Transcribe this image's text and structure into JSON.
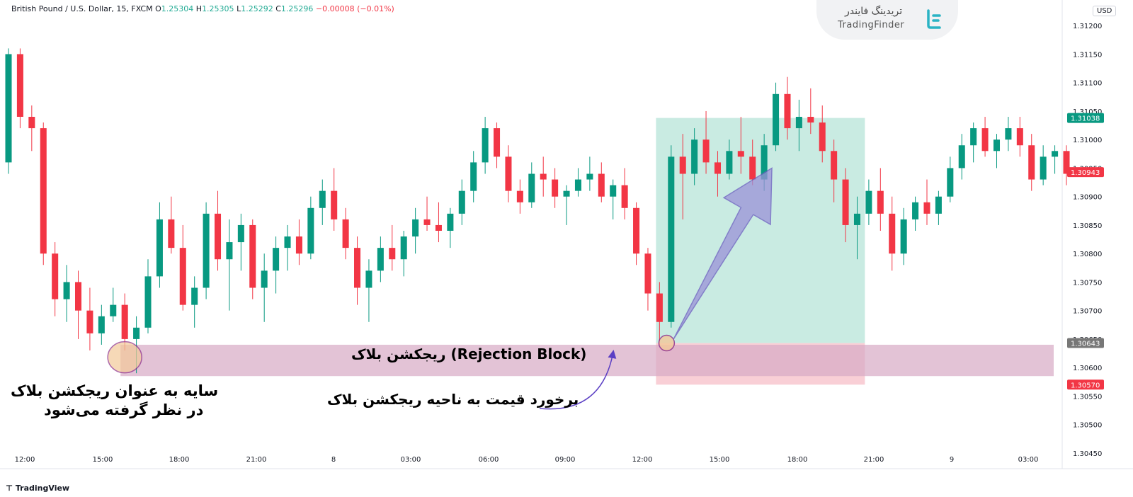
{
  "header": {
    "symbol": "British Pound / U.S. Dollar, 15, FXCM",
    "o_label": "O",
    "o_value": "1.25304",
    "h_label": "H",
    "h_value": "1.25305",
    "l_label": "L",
    "l_value": "1.25292",
    "c_label": "C",
    "c_value": "1.25296",
    "change": "−0.00008 (−0.01%)"
  },
  "logo": {
    "persian": "تریدینگ فایندر",
    "english": "TradingFinder"
  },
  "currency": "USD",
  "footer_brand": "TradingView",
  "annotations": {
    "zone_label": "ریجکشن بلاک (Rejection Block)",
    "touch_label": "برخورد قیمت به ناحیه ریجکشن بلاک",
    "shadow_line1": "سایه به عنوان ریجکشن بلاک",
    "shadow_line2": "در نظر گرفته می‌شود"
  },
  "colors": {
    "bull": "#089981",
    "bear": "#f23645",
    "zone": "#d7a9c4",
    "target": "#b2e3d5",
    "stop": "#f8c3cc",
    "arrow": "#9b92d8"
  },
  "chart_data": {
    "type": "candlestick",
    "ylim": [
      1.30425,
      1.31245
    ],
    "y_ticks": [
      "1.31200",
      "1.31150",
      "1.31100",
      "1.31050",
      "1.31000",
      "1.30950",
      "1.30900",
      "1.30850",
      "1.30800",
      "1.30750",
      "1.30700",
      "1.30650",
      "1.30600",
      "1.30550",
      "1.30500",
      "1.30450"
    ],
    "x_ticks": [
      "12:00",
      "15:00",
      "18:00",
      "21:00",
      "8",
      "03:00",
      "06:00",
      "09:00",
      "12:00",
      "15:00",
      "18:00",
      "21:00",
      "9",
      "03:00"
    ],
    "price_labels": [
      {
        "value": "1.31038",
        "color": "#089981"
      },
      {
        "value": "1.30943",
        "color": "#f23645"
      },
      {
        "value": "1.30643",
        "color": "#777777"
      },
      {
        "value": "1.30570",
        "color": "#f23645"
      }
    ],
    "rejection_zone": [
      1.30585,
      1.3064
    ],
    "position": {
      "entry": 1.30643,
      "target": 1.31038,
      "stop": 1.3057
    },
    "candles": [
      [
        1.3096,
        1.3116,
        1.3094,
        1.3115
      ],
      [
        1.3115,
        1.3116,
        1.3102,
        1.3104
      ],
      [
        1.3104,
        1.3106,
        1.3098,
        1.3102
      ],
      [
        1.3102,
        1.3103,
        1.3078,
        1.308
      ],
      [
        1.308,
        1.3082,
        1.3069,
        1.3072
      ],
      [
        1.3072,
        1.3078,
        1.3068,
        1.3075
      ],
      [
        1.3075,
        1.3077,
        1.3065,
        1.307
      ],
      [
        1.307,
        1.3074,
        1.3063,
        1.3066
      ],
      [
        1.3066,
        1.3071,
        1.3064,
        1.3069
      ],
      [
        1.3069,
        1.3074,
        1.3068,
        1.3071
      ],
      [
        1.3071,
        1.3073,
        1.3063,
        1.3065
      ],
      [
        1.3065,
        1.3069,
        1.3059,
        1.3067
      ],
      [
        1.3067,
        1.3079,
        1.3066,
        1.3076
      ],
      [
        1.3076,
        1.3089,
        1.3074,
        1.3086
      ],
      [
        1.3086,
        1.309,
        1.308,
        1.3081
      ],
      [
        1.3081,
        1.3085,
        1.307,
        1.3071
      ],
      [
        1.3071,
        1.3076,
        1.3067,
        1.3074
      ],
      [
        1.3074,
        1.3089,
        1.3072,
        1.3087
      ],
      [
        1.3087,
        1.3091,
        1.3077,
        1.3079
      ],
      [
        1.3079,
        1.3086,
        1.307,
        1.3082
      ],
      [
        1.3082,
        1.3087,
        1.3077,
        1.3085
      ],
      [
        1.3085,
        1.3086,
        1.3072,
        1.3074
      ],
      [
        1.3074,
        1.308,
        1.3068,
        1.3077
      ],
      [
        1.3077,
        1.3083,
        1.3073,
        1.3081
      ],
      [
        1.3081,
        1.3085,
        1.3077,
        1.3083
      ],
      [
        1.3083,
        1.3086,
        1.3078,
        1.308
      ],
      [
        1.308,
        1.309,
        1.3079,
        1.3088
      ],
      [
        1.3088,
        1.3093,
        1.3085,
        1.3091
      ],
      [
        1.3091,
        1.3095,
        1.3084,
        1.3086
      ],
      [
        1.3086,
        1.3088,
        1.3079,
        1.3081
      ],
      [
        1.3081,
        1.3083,
        1.3071,
        1.3074
      ],
      [
        1.3074,
        1.3079,
        1.3068,
        1.3077
      ],
      [
        1.3077,
        1.3083,
        1.3075,
        1.3081
      ],
      [
        1.3081,
        1.3085,
        1.3077,
        1.3079
      ],
      [
        1.3079,
        1.3084,
        1.3076,
        1.3083
      ],
      [
        1.3083,
        1.3088,
        1.308,
        1.3086
      ],
      [
        1.3086,
        1.309,
        1.3084,
        1.3085
      ],
      [
        1.3085,
        1.3089,
        1.3082,
        1.3084
      ],
      [
        1.3084,
        1.3088,
        1.3081,
        1.3087
      ],
      [
        1.3087,
        1.3093,
        1.3085,
        1.3091
      ],
      [
        1.3091,
        1.3098,
        1.3089,
        1.3096
      ],
      [
        1.3096,
        1.3104,
        1.3094,
        1.3102
      ],
      [
        1.3102,
        1.3103,
        1.3095,
        1.3097
      ],
      [
        1.3097,
        1.3099,
        1.3089,
        1.3091
      ],
      [
        1.3091,
        1.3093,
        1.3087,
        1.3089
      ],
      [
        1.3089,
        1.3096,
        1.3088,
        1.3094
      ],
      [
        1.3094,
        1.3097,
        1.309,
        1.3093
      ],
      [
        1.3093,
        1.3095,
        1.3088,
        1.309
      ],
      [
        1.309,
        1.3092,
        1.3085,
        1.3091
      ],
      [
        1.3091,
        1.3095,
        1.309,
        1.3093
      ],
      [
        1.3093,
        1.3097,
        1.3091,
        1.3094
      ],
      [
        1.3094,
        1.3096,
        1.3089,
        1.309
      ],
      [
        1.309,
        1.3093,
        1.3086,
        1.3092
      ],
      [
        1.3092,
        1.3095,
        1.3086,
        1.3088
      ],
      [
        1.3088,
        1.3089,
        1.3078,
        1.308
      ],
      [
        1.308,
        1.3081,
        1.307,
        1.3073
      ],
      [
        1.3073,
        1.3075,
        1.3064,
        1.3068
      ],
      [
        1.3068,
        1.3099,
        1.3067,
        1.3097
      ],
      [
        1.3097,
        1.3101,
        1.3086,
        1.3094
      ],
      [
        1.3094,
        1.3102,
        1.3092,
        1.31
      ],
      [
        1.31,
        1.3105,
        1.3094,
        1.3096
      ],
      [
        1.3096,
        1.3098,
        1.309,
        1.3094
      ],
      [
        1.3094,
        1.31,
        1.3093,
        1.3098
      ],
      [
        1.3098,
        1.3104,
        1.3094,
        1.3097
      ],
      [
        1.3097,
        1.31,
        1.3092,
        1.3093
      ],
      [
        1.3093,
        1.3101,
        1.3091,
        1.3099
      ],
      [
        1.3099,
        1.311,
        1.3098,
        1.3108
      ],
      [
        1.3108,
        1.3111,
        1.31,
        1.3102
      ],
      [
        1.3102,
        1.3107,
        1.3098,
        1.3104
      ],
      [
        1.3104,
        1.3109,
        1.3101,
        1.3103
      ],
      [
        1.3103,
        1.3106,
        1.3096,
        1.3098
      ],
      [
        1.3098,
        1.31,
        1.3089,
        1.3093
      ],
      [
        1.3093,
        1.3095,
        1.3082,
        1.3085
      ],
      [
        1.3085,
        1.309,
        1.3079,
        1.3087
      ],
      [
        1.3087,
        1.3093,
        1.3085,
        1.3091
      ],
      [
        1.3091,
        1.3095,
        1.3084,
        1.3087
      ],
      [
        1.3087,
        1.309,
        1.3077,
        1.308
      ],
      [
        1.308,
        1.3088,
        1.3078,
        1.3086
      ],
      [
        1.3086,
        1.309,
        1.3084,
        1.3089
      ],
      [
        1.3089,
        1.3093,
        1.3085,
        1.3087
      ],
      [
        1.3087,
        1.3091,
        1.3085,
        1.309
      ],
      [
        1.309,
        1.3097,
        1.3089,
        1.3095
      ],
      [
        1.3095,
        1.3101,
        1.3093,
        1.3099
      ],
      [
        1.3099,
        1.3103,
        1.3096,
        1.3102
      ],
      [
        1.3102,
        1.3104,
        1.3097,
        1.3098
      ],
      [
        1.3098,
        1.3101,
        1.3095,
        1.31
      ],
      [
        1.31,
        1.3104,
        1.3098,
        1.3102
      ],
      [
        1.3102,
        1.3104,
        1.3097,
        1.3099
      ],
      [
        1.3099,
        1.3101,
        1.3091,
        1.3093
      ],
      [
        1.3093,
        1.3099,
        1.3092,
        1.3097
      ],
      [
        1.3097,
        1.3099,
        1.3094,
        1.3098
      ],
      [
        1.3098,
        1.3099,
        1.3092,
        1.3094
      ]
    ]
  }
}
